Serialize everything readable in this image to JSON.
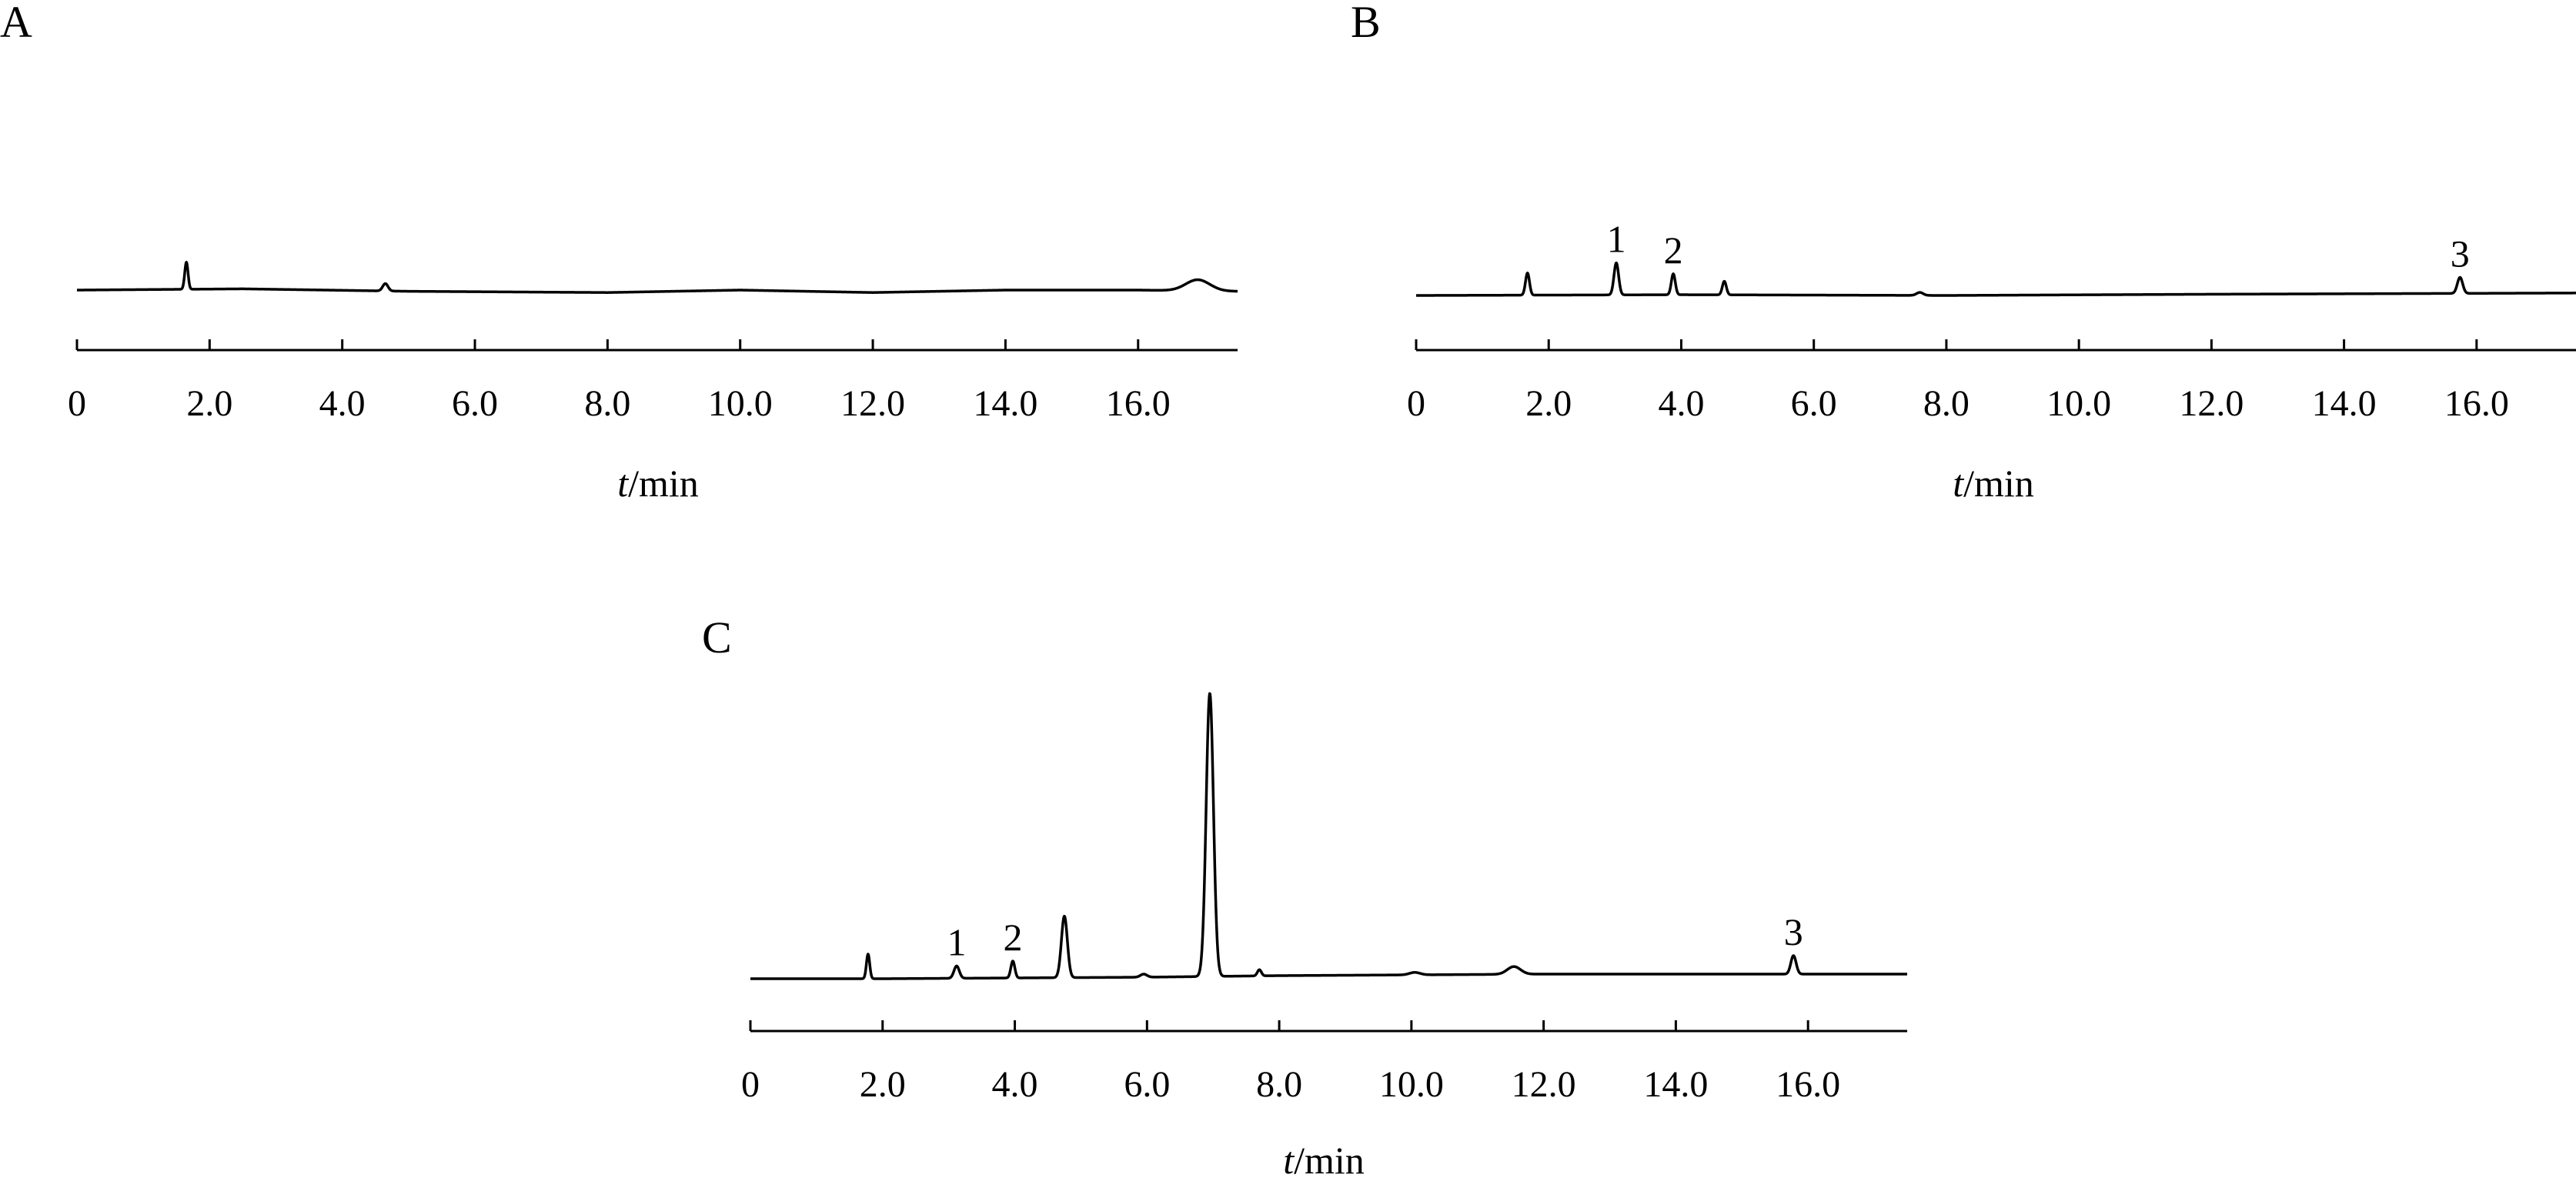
{
  "figure": {
    "line_color": "#000000",
    "background": "#ffffff"
  },
  "chart_data": [
    {
      "type": "line",
      "panel_label": "A",
      "xlabel_var": "t",
      "xlabel_unit": "/min",
      "xlim": [
        0,
        17.5
      ],
      "x_ticks": [
        0,
        2,
        4,
        6,
        8,
        10,
        12,
        14,
        16
      ],
      "x_tick_labels": [
        "0",
        "2.0",
        "4.0",
        "6.0",
        "8.0",
        "10.0",
        "12.0",
        "14.0",
        "16.0"
      ],
      "y_axis_visible": false,
      "grid": false,
      "ylim": [
        -10,
        100
      ],
      "baseline": [
        [
          0,
          0
        ],
        [
          2.5,
          0.5
        ],
        [
          5,
          -0.5
        ],
        [
          8,
          -1
        ],
        [
          10,
          0
        ],
        [
          12,
          -1
        ],
        [
          14,
          0
        ],
        [
          16,
          0
        ],
        [
          17.5,
          -0.5
        ]
      ],
      "peaks": [
        {
          "t": 1.65,
          "height": 11,
          "width": 0.025
        },
        {
          "t": 4.65,
          "height": 3,
          "width": 0.04
        },
        {
          "t": 16.9,
          "height": 4.5,
          "width": 0.18
        }
      ],
      "peak_labels": []
    },
    {
      "type": "line",
      "panel_label": "B",
      "xlabel_var": "t",
      "xlabel_unit": "/min",
      "xlim": [
        0,
        17.5
      ],
      "x_ticks": [
        0,
        2,
        4,
        6,
        8,
        10,
        12,
        14,
        16
      ],
      "x_tick_labels": [
        "0",
        "2.0",
        "4.0",
        "6.0",
        "8.0",
        "10.0",
        "12.0",
        "14.0",
        "16.0"
      ],
      "y_axis_visible": false,
      "grid": false,
      "ylim": [
        -10,
        100
      ],
      "baseline": [
        [
          0,
          0
        ],
        [
          4,
          0.3
        ],
        [
          8,
          0
        ],
        [
          12,
          0.5
        ],
        [
          17.5,
          1
        ]
      ],
      "peaks": [
        {
          "t": 1.68,
          "height": 9,
          "width": 0.03
        },
        {
          "t": 3.02,
          "height": 13,
          "width": 0.035
        },
        {
          "t": 3.88,
          "height": 8.5,
          "width": 0.03
        },
        {
          "t": 4.65,
          "height": 5.5,
          "width": 0.03
        },
        {
          "t": 7.6,
          "height": 1.2,
          "width": 0.05
        },
        {
          "t": 15.75,
          "height": 6.5,
          "width": 0.04
        }
      ],
      "peak_labels": [
        {
          "label": "1",
          "t": 3.02,
          "height": 13
        },
        {
          "label": "2",
          "t": 3.88,
          "height": 8.5
        },
        {
          "label": "3",
          "t": 15.75,
          "height": 6.5
        }
      ]
    },
    {
      "type": "line",
      "panel_label": "C",
      "xlabel_var": "t",
      "xlabel_unit": "/min",
      "xlim": [
        0,
        17.5
      ],
      "x_ticks": [
        0,
        2,
        4,
        6,
        8,
        10,
        12,
        14,
        16
      ],
      "x_tick_labels": [
        "0",
        "2.0",
        "4.0",
        "6.0",
        "8.0",
        "10.0",
        "12.0",
        "14.0",
        "16.0"
      ],
      "y_axis_visible": false,
      "grid": false,
      "ylim": [
        -10,
        100
      ],
      "baseline": [
        [
          0,
          0
        ],
        [
          2,
          0
        ],
        [
          6,
          0.5
        ],
        [
          8,
          1
        ],
        [
          12,
          1.5
        ],
        [
          17.5,
          1.5
        ]
      ],
      "peaks": [
        {
          "t": 1.78,
          "height": 8,
          "width": 0.025
        },
        {
          "t": 3.12,
          "height": 4,
          "width": 0.04
        },
        {
          "t": 3.97,
          "height": 5.5,
          "width": 0.03
        },
        {
          "t": 4.75,
          "height": 20,
          "width": 0.045
        },
        {
          "t": 5.95,
          "height": 1,
          "width": 0.05
        },
        {
          "t": 6.95,
          "height": 92,
          "width": 0.055
        },
        {
          "t": 7.7,
          "height": 2,
          "width": 0.03
        },
        {
          "t": 10.05,
          "height": 0.8,
          "width": 0.08
        },
        {
          "t": 11.55,
          "height": 2.5,
          "width": 0.1
        },
        {
          "t": 15.78,
          "height": 6,
          "width": 0.04
        }
      ],
      "peak_labels": [
        {
          "label": "1",
          "t": 3.12,
          "height": 4
        },
        {
          "label": "2",
          "t": 3.97,
          "height": 5.5
        },
        {
          "label": "3",
          "t": 15.78,
          "height": 6
        }
      ]
    }
  ]
}
